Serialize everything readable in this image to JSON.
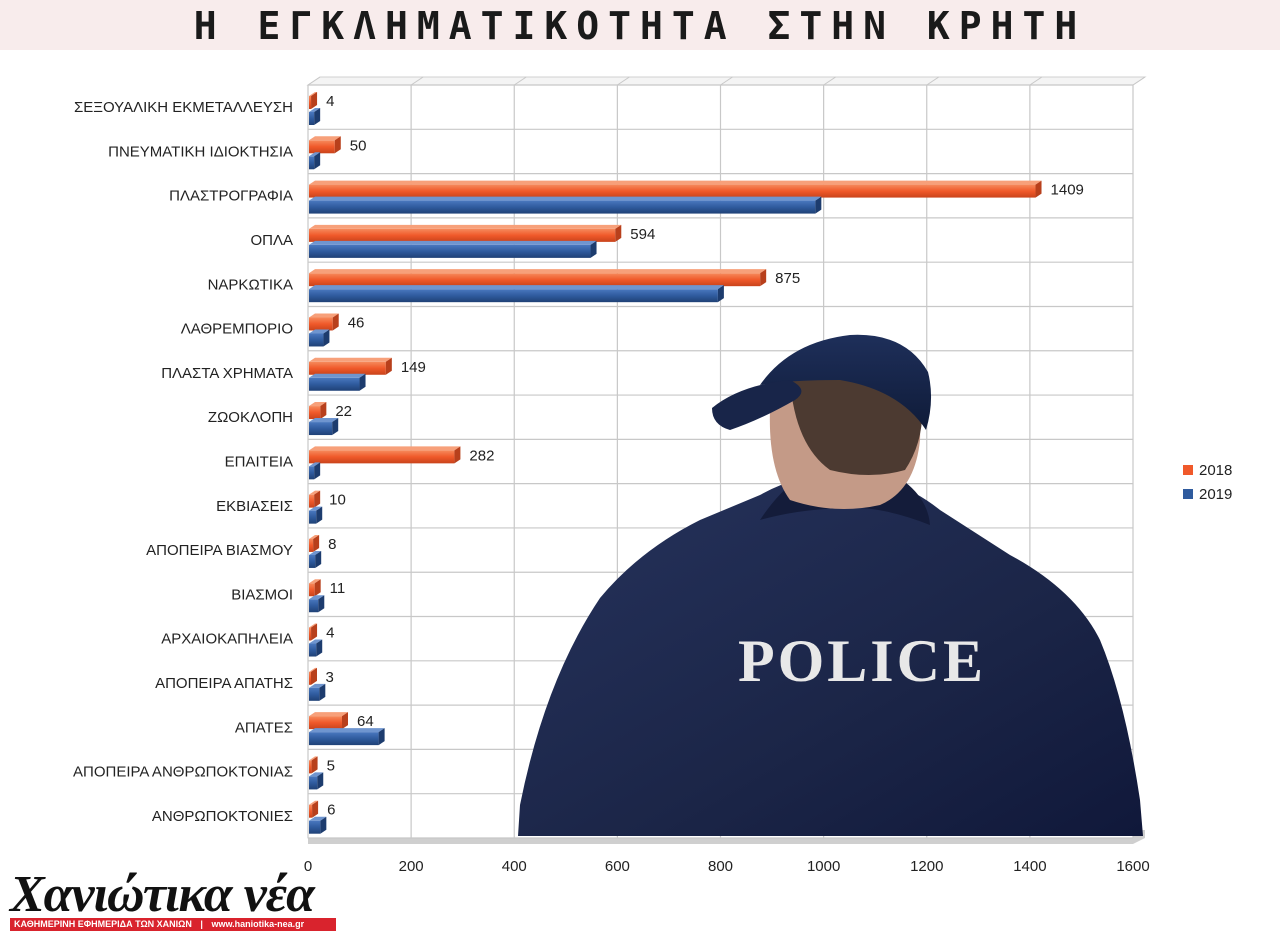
{
  "page": {
    "title": "Η ΕΓΚΛΗΜΑΤΙΚΟΤΗΤΑ ΣΤΗΝ ΚΡΗΤΗ"
  },
  "photo": {
    "jacket_text": "POLICE"
  },
  "brand": {
    "name": "Χανιώτικα νέα",
    "tagline": "ΚΑΘΗΜΕΡΙΝΗ ΕΦΗΜΕΡΙΔΑ ΤΩΝ ΧΑΝΙΩΝ",
    "separator": "|",
    "url": "www.haniotika-nea.gr"
  },
  "colors": {
    "series_2018": "#f0592a",
    "series_2019": "#2f5b9e",
    "title_band": "#f8ecec",
    "brand_red": "#d9232d"
  },
  "chart_data": {
    "type": "bar",
    "orientation": "horizontal",
    "categories": [
      "ΣΕΞΟΥΑΛΙΚΗ ΕΚΜΕΤΑΛΛΕΥΣΗ",
      "ΠΝΕΥΜΑΤΙΚΗ ΙΔΙΟΚΤΗΣΙΑ",
      "ΠΛΑΣΤΡΟΓΡΑΦΙΑ",
      "ΟΠΛΑ",
      "ΝΑΡΚΩΤΙΚΑ",
      "ΛΑΘΡΕΜΠΟΡΙΟ",
      "ΠΛΑΣΤΑ ΧΡΗΜΑΤΑ",
      "ΖΩΟΚΛΟΠΗ",
      "ΕΠΑΙΤΕΙΑ",
      "ΕΚΒΙΑΣΕΙΣ",
      "ΑΠΟΠΕΙΡΑ ΒΙΑΣΜΟΥ",
      "ΒΙΑΣΜΟΙ",
      "ΑΡΧΑΙΟΚΑΠΗΛΕΙΑ",
      "ΑΠΟΠΕΙΡΑ ΑΠΑΤΗΣ",
      "ΑΠΑΤΕΣ",
      "ΑΠΟΠΕΙΡΑ ΑΝΘΡΩΠΟΚΤΟΝΙΑΣ",
      "ΑΝΘΡΩΠΟΚΤΟΝΙΕΣ"
    ],
    "series": [
      {
        "name": "2018",
        "values": [
          4,
          50,
          1409,
          594,
          875,
          46,
          149,
          22,
          282,
          10,
          8,
          11,
          4,
          3,
          64,
          5,
          6
        ]
      },
      {
        "name": "2019",
        "values": [
          10,
          10,
          982,
          546,
          793,
          28,
          98,
          45,
          10,
          14,
          12,
          18,
          14,
          20,
          135,
          16,
          22
        ]
      }
    ],
    "data_labels": [
      "4",
      "50",
      "1409",
      "594",
      "875",
      "46",
      "149",
      "22",
      "282",
      "10",
      "8",
      "11",
      "4",
      "3",
      "64",
      "5",
      "6"
    ],
    "xlim": [
      0,
      1600
    ],
    "xticks": [
      "0",
      "200",
      "400",
      "600",
      "800",
      "1000",
      "1200",
      "1400",
      "1600"
    ],
    "grid": true,
    "legend_position": "right"
  }
}
